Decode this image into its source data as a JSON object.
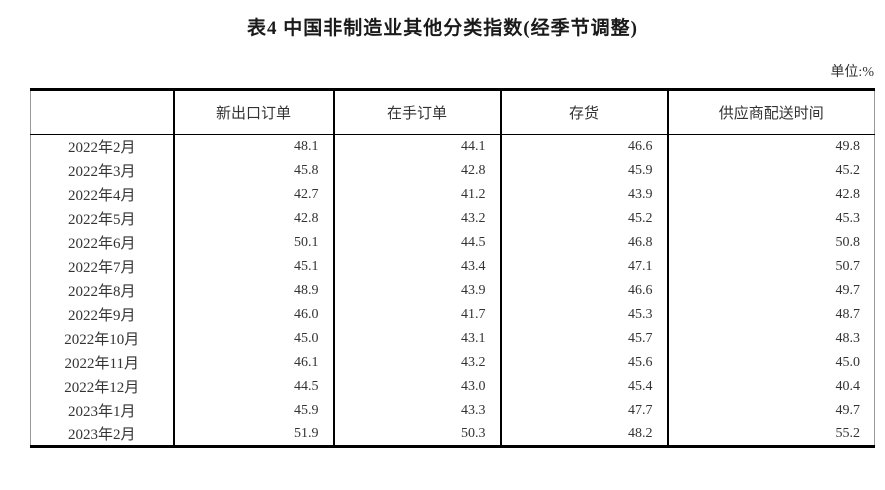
{
  "title": "表4 中国非制造业其他分类指数(经季节调整)",
  "unit_label": "单位:%",
  "table": {
    "columns": [
      "",
      "新出口订单",
      "在手订单",
      "存货",
      "供应商配送时间"
    ],
    "rows": [
      {
        "label": "2022年2月",
        "values": [
          "48.1",
          "44.1",
          "46.6",
          "49.8"
        ]
      },
      {
        "label": "2022年3月",
        "values": [
          "45.8",
          "42.8",
          "45.9",
          "45.2"
        ]
      },
      {
        "label": "2022年4月",
        "values": [
          "42.7",
          "41.2",
          "43.9",
          "42.8"
        ]
      },
      {
        "label": "2022年5月",
        "values": [
          "42.8",
          "43.2",
          "45.2",
          "45.3"
        ]
      },
      {
        "label": "2022年6月",
        "values": [
          "50.1",
          "44.5",
          "46.8",
          "50.8"
        ]
      },
      {
        "label": "2022年7月",
        "values": [
          "45.1",
          "43.4",
          "47.1",
          "50.7"
        ]
      },
      {
        "label": "2022年8月",
        "values": [
          "48.9",
          "43.9",
          "46.6",
          "49.7"
        ]
      },
      {
        "label": "2022年9月",
        "values": [
          "46.0",
          "41.7",
          "45.3",
          "48.7"
        ]
      },
      {
        "label": "2022年10月",
        "values": [
          "45.0",
          "43.1",
          "45.7",
          "48.3"
        ]
      },
      {
        "label": "2022年11月",
        "values": [
          "46.1",
          "43.2",
          "45.6",
          "45.0"
        ]
      },
      {
        "label": "2022年12月",
        "values": [
          "44.5",
          "43.0",
          "45.4",
          "40.4"
        ]
      },
      {
        "label": "2023年1月",
        "values": [
          "45.9",
          "43.3",
          "47.7",
          "49.7"
        ]
      },
      {
        "label": "2023年2月",
        "values": [
          "51.9",
          "50.3",
          "48.2",
          "55.2"
        ]
      }
    ]
  }
}
